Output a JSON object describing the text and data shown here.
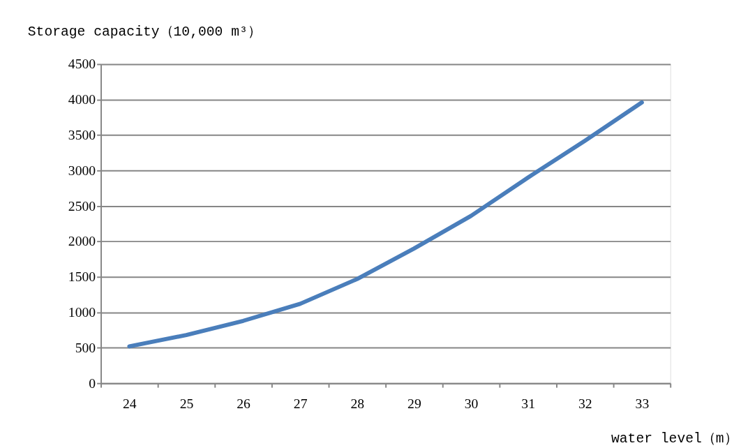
{
  "chart_data": {
    "type": "line",
    "xlabel": "water level（m）",
    "ylabel": "Storage capacity（10,000 m³）",
    "categories": [
      "24",
      "25",
      "26",
      "27",
      "28",
      "29",
      "30",
      "31",
      "32",
      "33"
    ],
    "series": [
      {
        "color": "#4a7ebb",
        "values": [
          520,
          680,
          880,
          1120,
          1470,
          1900,
          2360,
          2900,
          3420,
          3960
        ]
      }
    ],
    "ylim": [
      0,
      4500
    ],
    "yticks": [
      0,
      500,
      1000,
      1500,
      2000,
      2500,
      3000,
      3500,
      4000,
      4500
    ],
    "grid": "y",
    "marker": "none",
    "line_style": "solid"
  }
}
